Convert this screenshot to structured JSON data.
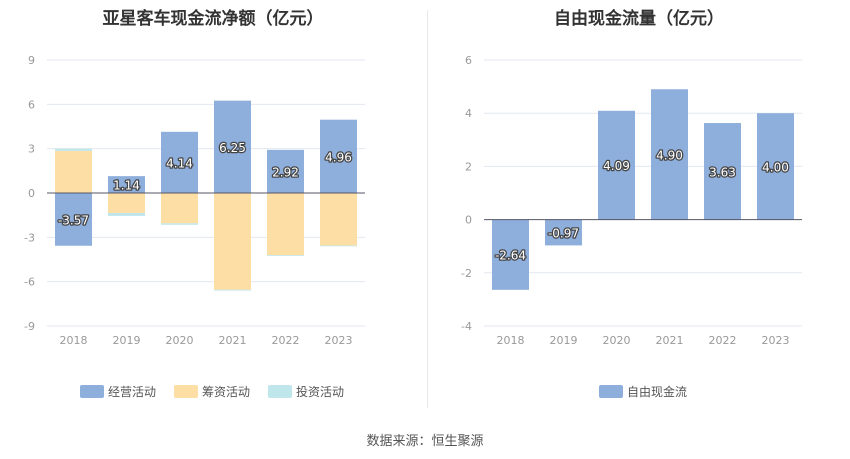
{
  "footer": {
    "source": "数据来源：恒生聚源"
  },
  "chart_data": [
    {
      "type": "bar",
      "stacked": true,
      "title": "亚星客车现金流净额（亿元）",
      "categories": [
        "2018",
        "2019",
        "2020",
        "2021",
        "2022",
        "2023"
      ],
      "series": [
        {
          "name": "经营活动",
          "color": "#8eaedc",
          "values": [
            -3.57,
            1.14,
            4.14,
            6.25,
            2.92,
            4.96
          ],
          "labels": [
            "-3.57",
            "1.14",
            "4.14",
            "6.25",
            "2.92",
            "4.96"
          ]
        },
        {
          "name": "筹资活动",
          "color": "#fddea5",
          "values": [
            2.85,
            -1.35,
            -2.05,
            -6.55,
            -4.2,
            -3.55
          ]
        },
        {
          "name": "投资活动",
          "color": "#bfe6ea",
          "values": [
            0.15,
            -0.2,
            -0.1,
            -0.05,
            -0.05,
            -0.05
          ]
        }
      ],
      "yticks": [
        "9",
        "6",
        "3",
        "0",
        "-3",
        "-6",
        "-9"
      ],
      "ylim": [
        -9,
        9
      ],
      "grid": true,
      "legend_position": "bottom"
    },
    {
      "type": "bar",
      "title": "自由现金流量（亿元）",
      "categories": [
        "2018",
        "2019",
        "2020",
        "2021",
        "2022",
        "2023"
      ],
      "series": [
        {
          "name": "自由现金流",
          "color": "#8eaedc",
          "values": [
            -2.64,
            -0.97,
            4.09,
            4.9,
            3.63,
            4.0
          ],
          "labels": [
            "-2.64",
            "-0.97",
            "4.09",
            "4.90",
            "3.63",
            "4.00"
          ]
        }
      ],
      "yticks": [
        "6",
        "4",
        "2",
        "0",
        "-2",
        "-4"
      ],
      "ylim": [
        -4,
        6
      ],
      "grid": true,
      "legend_position": "bottom"
    }
  ]
}
